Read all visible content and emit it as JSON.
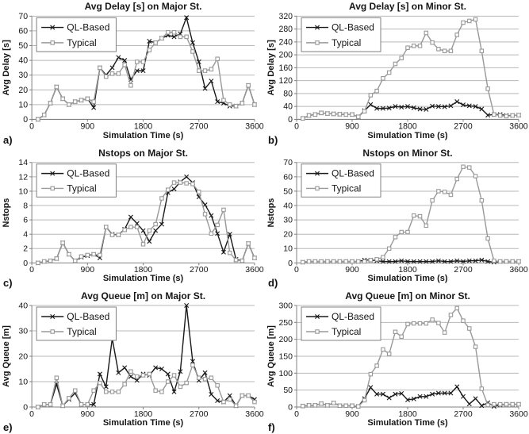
{
  "figure": {
    "xlabel": "Simulation Time (s)",
    "x_ticks": [
      0,
      900,
      1800,
      2700,
      3600
    ],
    "xlim": [
      0,
      3600
    ],
    "legend": [
      {
        "name": "QL-Based",
        "color": "#1a1a1a",
        "marker": "x"
      },
      {
        "name": "Typical",
        "color": "#999999",
        "marker": "square"
      }
    ],
    "style": {
      "grid_color": "#b8b8b8",
      "axis_color": "#808080",
      "text_color": "#161616",
      "background": "#ffffff"
    }
  },
  "x_values": [
    100,
    200,
    300,
    400,
    500,
    600,
    700,
    800,
    900,
    1000,
    1100,
    1200,
    1300,
    1400,
    1500,
    1600,
    1700,
    1800,
    1900,
    2000,
    2100,
    2200,
    2300,
    2400,
    2500,
    2600,
    2700,
    2800,
    2900,
    3000,
    3100,
    3200,
    3300,
    3400,
    3500,
    3600
  ],
  "chart_data": [
    {
      "id": "a",
      "panel_label": "a)",
      "type": "line",
      "title": "Avg Delay [s] on Major St.",
      "ylabel": "Avg Delay [s]",
      "xlabel": "Simulation Time (s)",
      "ylim": [
        0,
        70
      ],
      "ytick_step": 10,
      "grid": true,
      "legend_position": "top-left",
      "series": [
        {
          "name": "QL-Based",
          "values": [
            0,
            3,
            11,
            22,
            14,
            10,
            12,
            13,
            14,
            8,
            35,
            30,
            35,
            42,
            40,
            27,
            33,
            33,
            53,
            52,
            55,
            57,
            56,
            58,
            69,
            52,
            39,
            21,
            26,
            12,
            11,
            9,
            9,
            11,
            23,
            10
          ]
        },
        {
          "name": "Typical",
          "values": [
            0,
            3,
            11,
            22,
            14,
            10,
            12,
            13,
            14,
            12,
            35,
            29,
            31,
            31,
            37,
            23,
            39,
            39,
            47,
            52,
            55,
            59,
            59,
            56,
            56,
            46,
            33,
            33,
            34,
            41,
            13,
            10,
            9,
            11,
            23,
            10
          ]
        }
      ]
    },
    {
      "id": "b",
      "panel_label": "b)",
      "type": "line",
      "title": "Avg Delay [s] on Minor St.",
      "ylabel": "Avg Delay [s]",
      "xlabel": "Simulation Time (s)",
      "ylim": [
        0,
        320
      ],
      "ytick_step": 40,
      "grid": true,
      "legend_position": "top-left",
      "series": [
        {
          "name": "QL-Based",
          "values": [
            3,
            12,
            15,
            20,
            18,
            17,
            16,
            15,
            15,
            8,
            27,
            46,
            34,
            34,
            35,
            40,
            38,
            40,
            36,
            32,
            31,
            41,
            40,
            39,
            42,
            55,
            45,
            42,
            40,
            32,
            13,
            15,
            15,
            12,
            12,
            13
          ]
        },
        {
          "name": "Typical",
          "values": [
            3,
            12,
            15,
            20,
            18,
            17,
            16,
            15,
            15,
            8,
            25,
            75,
            88,
            127,
            145,
            172,
            190,
            222,
            228,
            228,
            268,
            238,
            218,
            212,
            212,
            262,
            300,
            305,
            310,
            212,
            95,
            15,
            12,
            10,
            12,
            13
          ]
        }
      ]
    },
    {
      "id": "c",
      "panel_label": "c)",
      "type": "line",
      "title": "Nstops on Major St.",
      "ylabel": "Nstops",
      "xlabel": "Simulation Time (s)",
      "ylim": [
        0,
        14
      ],
      "ytick_step": 2,
      "grid": true,
      "legend_position": "top-left",
      "series": [
        {
          "name": "QL-Based",
          "values": [
            0,
            0.2,
            0.3,
            0.6,
            2.8,
            1.2,
            0.3,
            0.8,
            1,
            1.2,
            0.7,
            5,
            4,
            3.9,
            4.7,
            6.4,
            5.5,
            4.5,
            3,
            4.5,
            5.4,
            9.8,
            10.3,
            11.3,
            12,
            11.2,
            9.2,
            8.1,
            6.6,
            4.1,
            1.5,
            4,
            0.5,
            0.3,
            2.7,
            0.7
          ]
        },
        {
          "name": "Typical",
          "values": [
            0,
            0.2,
            0.3,
            0.6,
            2.8,
            1.2,
            0.3,
            0.9,
            1.1,
            1.2,
            1.1,
            5,
            3.9,
            3.9,
            4.6,
            5,
            5,
            2.6,
            4.5,
            5.4,
            9,
            10.2,
            11.2,
            11.2,
            11.1,
            11,
            9.9,
            6.8,
            4.1,
            5.3,
            7.4,
            1.4,
            0.4,
            0.3,
            2.7,
            0.7
          ]
        }
      ]
    },
    {
      "id": "d",
      "panel_label": "d)",
      "type": "line",
      "title": "Nstops on Minor St.",
      "ylabel": "Nstops",
      "xlabel": "Simulation Time (s)",
      "ylim": [
        0,
        70
      ],
      "ytick_step": 10,
      "grid": true,
      "legend_position": "top-left",
      "series": [
        {
          "name": "QL-Based",
          "values": [
            0.5,
            1,
            1,
            1,
            1,
            1,
            1,
            1,
            1,
            1,
            2,
            2,
            1.5,
            1,
            1,
            1,
            1.5,
            1,
            1,
            1,
            1,
            1,
            1.5,
            1,
            1,
            1.5,
            1,
            1.5,
            1.5,
            2,
            1,
            0.5,
            1,
            1,
            1,
            1
          ]
        },
        {
          "name": "Typical",
          "values": [
            0.5,
            1,
            1,
            1,
            1,
            1,
            1,
            1,
            1,
            1,
            1,
            2,
            2.5,
            4,
            10,
            18,
            21.5,
            21.5,
            33,
            32.5,
            26,
            43.5,
            50,
            49.5,
            47.5,
            58.5,
            67,
            66.5,
            60.5,
            43.5,
            17,
            1.5,
            1,
            1,
            1,
            1
          ]
        }
      ]
    },
    {
      "id": "e",
      "panel_label": "e)",
      "type": "line",
      "title": "Avg Queue [m] on Major St.",
      "ylabel": "Avg Queue [m]",
      "xlabel": "Simulation Time (s)",
      "ylim": [
        0,
        40
      ],
      "ytick_step": 10,
      "grid": true,
      "legend_position": "top-left",
      "series": [
        {
          "name": "QL-Based",
          "values": [
            0,
            1,
            1,
            9,
            0.5,
            3,
            5.5,
            1,
            1,
            1,
            13,
            8,
            27,
            13.5,
            15.5,
            12,
            10.5,
            13,
            12.5,
            15.5,
            15,
            13,
            6,
            14,
            40,
            18,
            10.5,
            13.5,
            5,
            2.5,
            2,
            4.5,
            0.5,
            4.5,
            4.5,
            3
          ]
        },
        {
          "name": "Typical",
          "values": [
            0,
            1,
            1,
            11.5,
            0.5,
            3.5,
            6.5,
            1,
            1,
            6.5,
            9.5,
            6,
            6,
            6,
            9,
            14,
            12,
            12.5,
            13,
            6.5,
            6,
            10,
            12.5,
            8,
            9.5,
            16.5,
            11.5,
            11,
            11.5,
            8.5,
            2,
            3,
            0.5,
            4.5,
            4.5,
            2
          ]
        }
      ]
    },
    {
      "id": "f",
      "panel_label": "f)",
      "type": "line",
      "title": "Avg Queue [m] on Minor St.",
      "ylabel": "Avg Queue [m]",
      "xlabel": "Simulation Time (s)",
      "ylim": [
        0,
        300
      ],
      "ytick_step": 50,
      "grid": true,
      "legend_position": "top-left",
      "series": [
        {
          "name": "QL-Based",
          "values": [
            3,
            5,
            5,
            10,
            5,
            12,
            4,
            4,
            4,
            2,
            25,
            58,
            38,
            38,
            27,
            38,
            40,
            21,
            24,
            31,
            31,
            38,
            41,
            41,
            41,
            60,
            31,
            9,
            25,
            4,
            13,
            2,
            6,
            8,
            8,
            8
          ]
        },
        {
          "name": "Typical",
          "values": [
            3,
            5,
            5,
            10,
            5,
            12,
            4,
            4,
            4,
            2,
            20,
            97,
            122,
            170,
            157,
            222,
            208,
            245,
            247,
            247,
            247,
            258,
            248,
            220,
            272,
            292,
            255,
            232,
            178,
            54,
            6,
            8,
            8,
            8,
            8,
            8
          ]
        }
      ]
    }
  ]
}
